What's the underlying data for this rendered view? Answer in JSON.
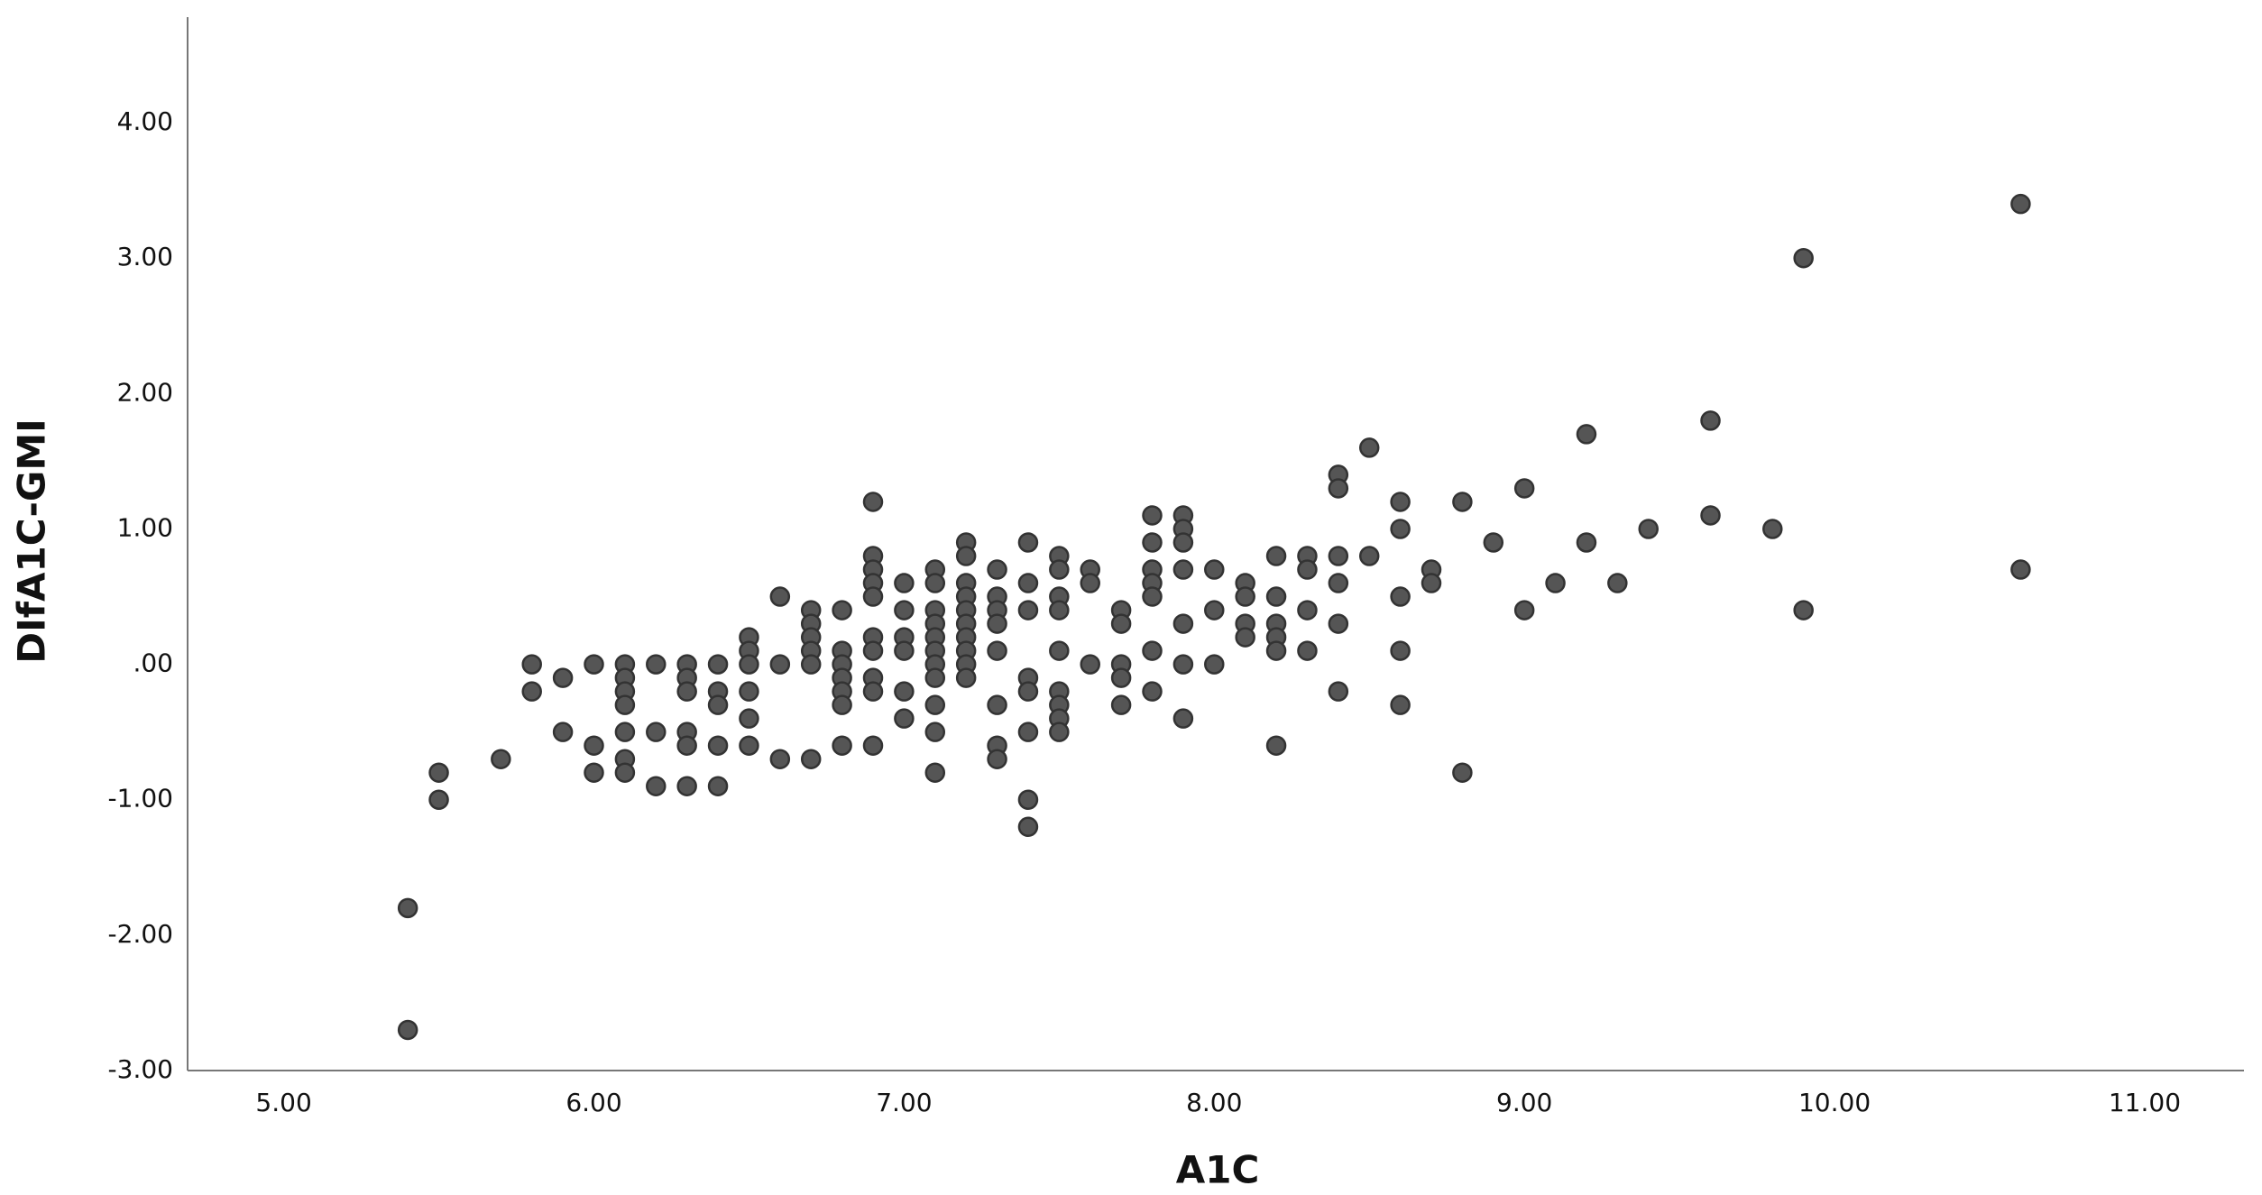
{
  "chart_data": {
    "type": "scatter",
    "x_label": "A1C",
    "y_label": "DIfA1C-GMI",
    "color": "#555555",
    "xlim": [
      4.69,
      11.32
    ],
    "ylim": [
      -3,
      4.78
    ],
    "xticks": [
      {
        "value": 5,
        "label": "5.00"
      },
      {
        "value": 6,
        "label": "6.00"
      },
      {
        "value": 7,
        "label": "7.00"
      },
      {
        "value": 8,
        "label": "8.00"
      },
      {
        "value": 9,
        "label": "9.00"
      },
      {
        "value": 10,
        "label": "10.00"
      },
      {
        "value": 11,
        "label": "11.00"
      }
    ],
    "yticks": [
      {
        "value": -3,
        "label": "-3.00"
      },
      {
        "value": -2,
        "label": "-2.00"
      },
      {
        "value": -1,
        "label": "-1.00"
      },
      {
        "value": 0,
        "label": ".00"
      },
      {
        "value": 1,
        "label": "1.00"
      },
      {
        "value": 2,
        "label": "2.00"
      },
      {
        "value": 3,
        "label": "3.00"
      },
      {
        "value": 4,
        "label": "4.00"
      }
    ],
    "x": [
      5.4,
      5.4,
      5.5,
      5.5,
      5.7,
      5.8,
      5.8,
      5.9,
      5.9,
      6.0,
      6.0,
      6.0,
      6.1,
      6.1,
      6.1,
      6.1,
      6.1,
      6.1,
      6.1,
      6.2,
      6.2,
      6.2,
      6.3,
      6.3,
      6.3,
      6.3,
      6.3,
      6.3,
      6.4,
      6.4,
      6.4,
      6.4,
      6.4,
      6.5,
      6.5,
      6.5,
      6.5,
      6.5,
      6.5,
      6.6,
      6.6,
      6.6,
      6.7,
      6.7,
      6.7,
      6.7,
      6.7,
      6.7,
      6.8,
      6.8,
      6.8,
      6.8,
      6.8,
      6.8,
      6.8,
      6.9,
      6.9,
      6.9,
      6.9,
      6.9,
      6.9,
      6.9,
      6.9,
      6.9,
      6.9,
      7.0,
      7.0,
      7.0,
      7.0,
      7.0,
      7.0,
      7.1,
      7.1,
      7.1,
      7.1,
      7.1,
      7.1,
      7.1,
      7.1,
      7.1,
      7.1,
      7.1,
      7.2,
      7.2,
      7.2,
      7.2,
      7.2,
      7.2,
      7.2,
      7.2,
      7.2,
      7.2,
      7.3,
      7.3,
      7.3,
      7.3,
      7.3,
      7.3,
      7.3,
      7.3,
      7.4,
      7.4,
      7.4,
      7.4,
      7.4,
      7.4,
      7.4,
      7.4,
      7.5,
      7.5,
      7.5,
      7.5,
      7.5,
      7.5,
      7.5,
      7.5,
      7.5,
      7.6,
      7.6,
      7.6,
      7.7,
      7.7,
      7.7,
      7.7,
      7.7,
      7.8,
      7.8,
      7.8,
      7.8,
      7.8,
      7.8,
      7.8,
      7.9,
      7.9,
      7.9,
      7.9,
      7.9,
      7.9,
      7.9,
      8.0,
      8.0,
      8.0,
      8.1,
      8.1,
      8.1,
      8.1,
      8.2,
      8.2,
      8.2,
      8.2,
      8.2,
      8.2,
      8.3,
      8.3,
      8.3,
      8.3,
      8.4,
      8.4,
      8.4,
      8.4,
      8.4,
      8.4,
      8.5,
      8.5,
      8.6,
      8.6,
      8.6,
      8.6,
      8.6,
      8.7,
      8.7,
      8.8,
      8.8,
      8.9,
      9.0,
      9.0,
      9.1,
      9.2,
      9.2,
      9.3,
      9.4,
      9.6,
      9.6,
      9.8,
      9.9,
      9.9,
      10.6,
      10.6
    ],
    "values": [
      -1.8,
      -2.7,
      -0.8,
      -1.0,
      -0.7,
      0,
      -0.2,
      -0.1,
      -0.5,
      0,
      -0.6,
      -0.8,
      0,
      -0.1,
      -0.2,
      -0.3,
      -0.5,
      -0.7,
      -0.8,
      0,
      -0.5,
      -0.9,
      0,
      -0.1,
      -0.2,
      -0.5,
      -0.6,
      -0.9,
      0,
      -0.2,
      -0.3,
      -0.6,
      -0.9,
      0.2,
      0.1,
      0,
      -0.2,
      -0.4,
      -0.6,
      0.5,
      0,
      -0.7,
      0.4,
      0.3,
      0.2,
      0.1,
      0,
      -0.7,
      0.4,
      0.1,
      0,
      -0.1,
      -0.2,
      -0.3,
      -0.6,
      1.2,
      0.8,
      0.7,
      0.6,
      0.5,
      0.2,
      0.1,
      -0.1,
      -0.2,
      -0.6,
      0.6,
      0.4,
      0.2,
      0.1,
      -0.2,
      -0.4,
      0.7,
      0.6,
      0.4,
      0.3,
      0.2,
      0.1,
      0,
      -0.1,
      -0.3,
      -0.5,
      -0.8,
      0.9,
      0.8,
      0.6,
      0.5,
      0.4,
      0.3,
      0.2,
      0.1,
      0,
      -0.1,
      0.7,
      0.5,
      0.4,
      0.3,
      0.1,
      -0.3,
      -0.6,
      -0.7,
      0.9,
      0.6,
      0.4,
      -0.1,
      -0.2,
      -0.5,
      -1.0,
      -1.2,
      0.8,
      0.7,
      0.5,
      0.4,
      0.1,
      -0.2,
      -0.3,
      -0.4,
      -0.5,
      0.7,
      0.6,
      0,
      0.4,
      0.3,
      0,
      -0.1,
      -0.3,
      1.1,
      0.9,
      0.7,
      0.6,
      0.5,
      0.1,
      -0.2,
      1.1,
      1.0,
      0.9,
      0.7,
      0.3,
      0,
      -0.4,
      0.7,
      0.4,
      0,
      0.6,
      0.5,
      0.3,
      0.2,
      0.8,
      0.5,
      0.3,
      0.2,
      0.1,
      -0.6,
      0.8,
      0.7,
      0.4,
      0.1,
      1.4,
      1.3,
      0.8,
      0.6,
      0.3,
      -0.2,
      1.6,
      0.8,
      1.2,
      1.0,
      0.5,
      0.1,
      -0.3,
      0.7,
      0.6,
      1.2,
      -0.8,
      0.9,
      1.3,
      0.4,
      0.6,
      1.7,
      0.9,
      0.6,
      1.0,
      1.8,
      1.1,
      1.0,
      3.0,
      0.4,
      3.4,
      0.7
    ]
  }
}
